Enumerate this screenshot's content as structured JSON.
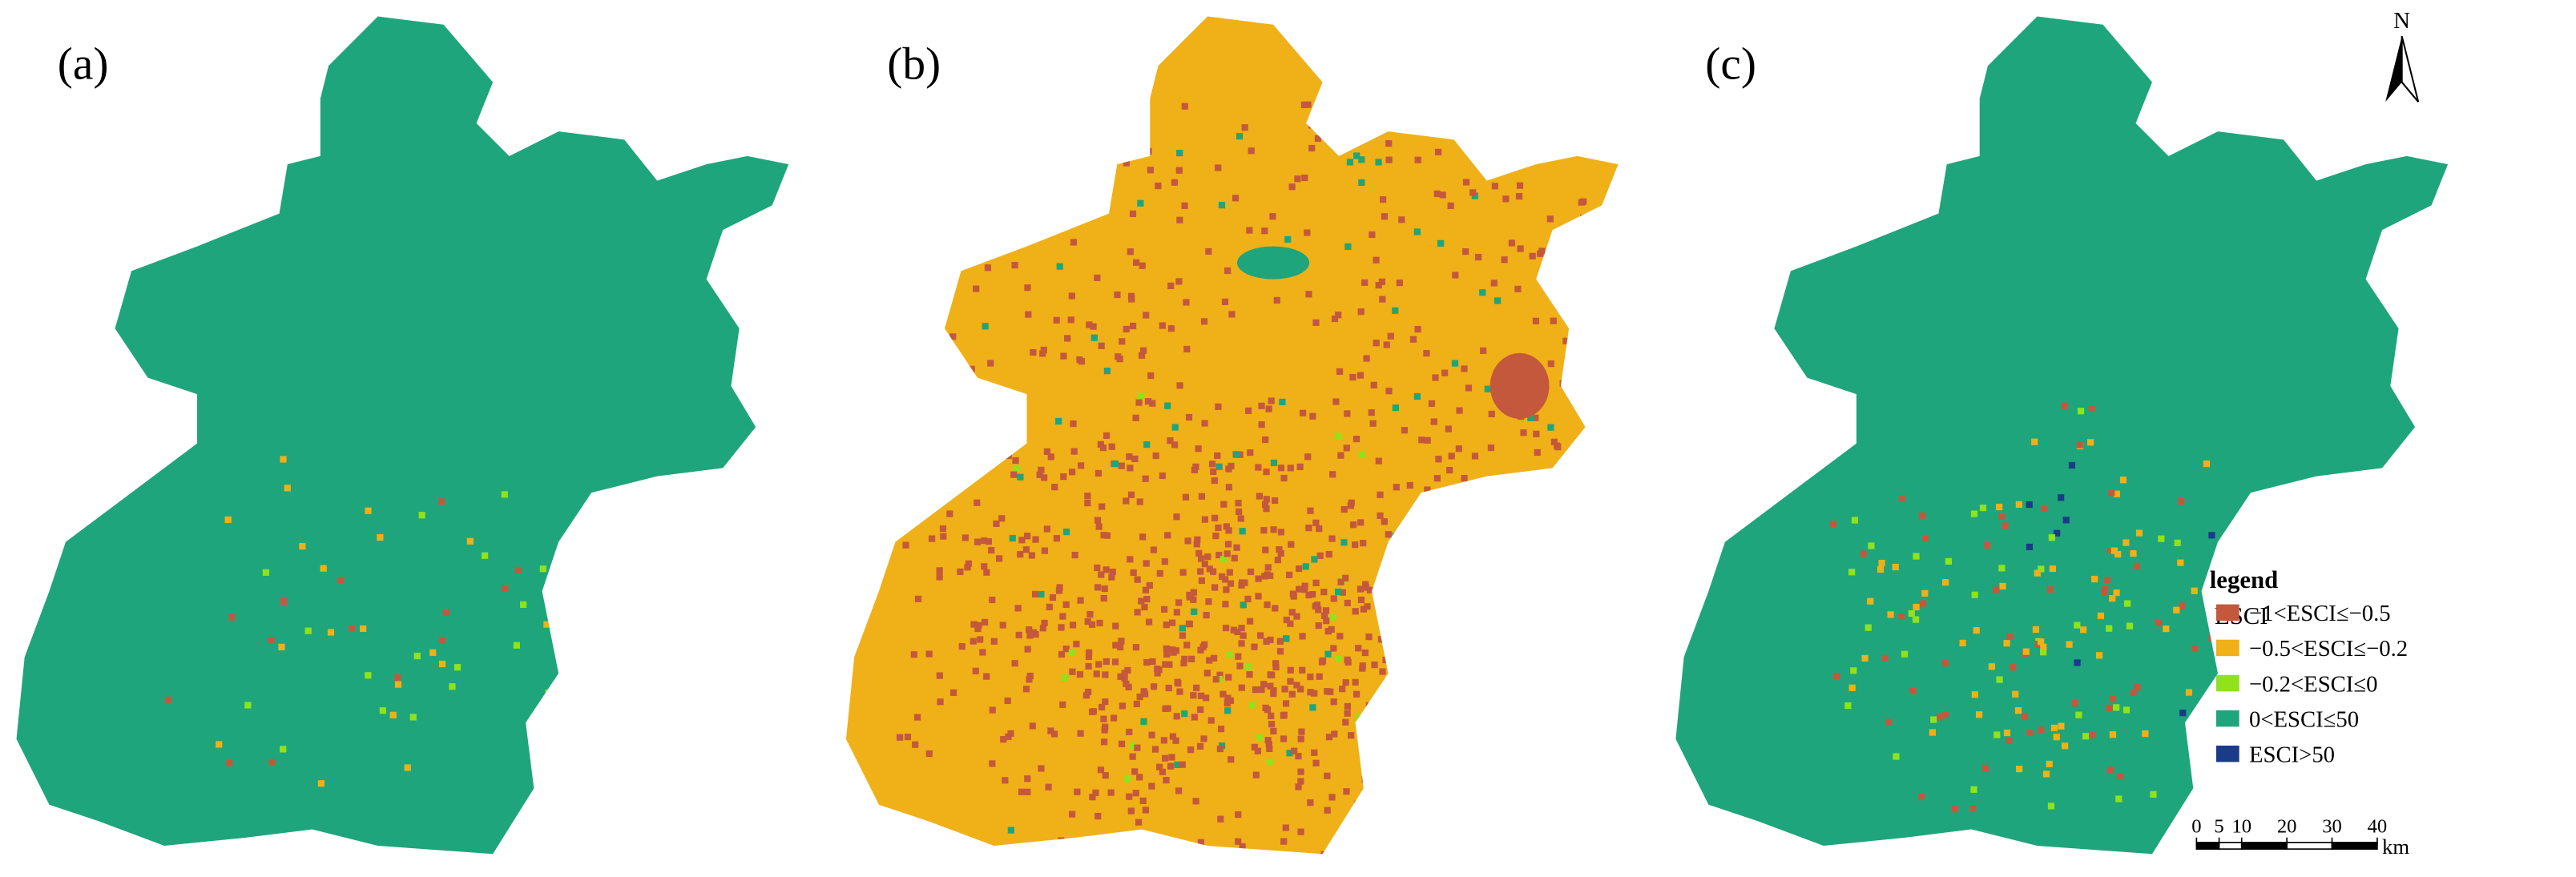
{
  "panels": [
    {
      "label": "(a)"
    },
    {
      "label": "(b)"
    },
    {
      "label": "(c)"
    }
  ],
  "north": "N",
  "legend": {
    "title": "legend",
    "subtitle": "ESCI",
    "items": [
      {
        "label": "−1<ESCI≤−0.5",
        "color": "#c4583c"
      },
      {
        "label": "−0.5<ESCI≤−0.2",
        "color": "#f0b018"
      },
      {
        "label": "−0.2<ESCI≤0",
        "color": "#8fe21c"
      },
      {
        "label": "0<ESCI≤50",
        "color": "#1fa57b"
      },
      {
        "label": "ESCI>50",
        "color": "#1a3a8a"
      }
    ]
  },
  "scale_bar": {
    "ticks": [
      0,
      5,
      10,
      20,
      30,
      40
    ],
    "unit": "km"
  }
}
